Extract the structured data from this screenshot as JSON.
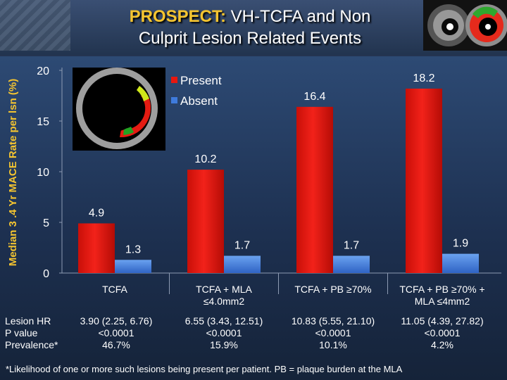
{
  "title": {
    "accent": "PROSPECT:",
    "line1_rest": " VH-TCFA and Non",
    "line2": "Culprit Lesion Related Events"
  },
  "chart_data": {
    "type": "bar",
    "ylabel": "Median 3 .4 Yr MACE Rate per lsn (%)",
    "xlabel": "",
    "ylim": [
      0,
      20
    ],
    "yticks": [
      "0",
      "5",
      "10",
      "15",
      "20"
    ],
    "grid": false,
    "legend_position": "top-left",
    "categories": [
      [
        "TCFA"
      ],
      [
        "TCFA + MLA",
        "≤4.0mm2"
      ],
      [
        "TCFA + PB ≥70%"
      ],
      [
        "TCFA + PB ≥70% +",
        "MLA ≤4mm2"
      ]
    ],
    "series": [
      {
        "name": "Present",
        "values": [
          4.9,
          10.2,
          16.4,
          18.2
        ],
        "labels": [
          "4.9",
          "10.2",
          "16.4",
          "18.2"
        ],
        "color": "#e8170f"
      },
      {
        "name": "Absent",
        "values": [
          1.3,
          1.7,
          1.7,
          1.9
        ],
        "labels": [
          "1.3",
          "1.7",
          "1.7",
          "1.9"
        ],
        "color": "#3f7bdc"
      }
    ]
  },
  "stats": {
    "row_labels": [
      "Lesion HR",
      "P value",
      "Prevalence*"
    ],
    "columns": [
      [
        "3.90 (2.25, 6.76)",
        "<0.0001",
        "46.7%"
      ],
      [
        "6.55 (3.43, 12.51)",
        "<0.0001",
        "15.9%"
      ],
      [
        "10.83 (5.55, 21.10)",
        "<0.0001",
        "10.1%"
      ],
      [
        "11.05 (4.39, 27.82)",
        "<0.0001",
        "4.2%"
      ]
    ]
  },
  "footnote": "*Likelihood of one or more such lesions being present per patient. PB = plaque burden at the MLA"
}
